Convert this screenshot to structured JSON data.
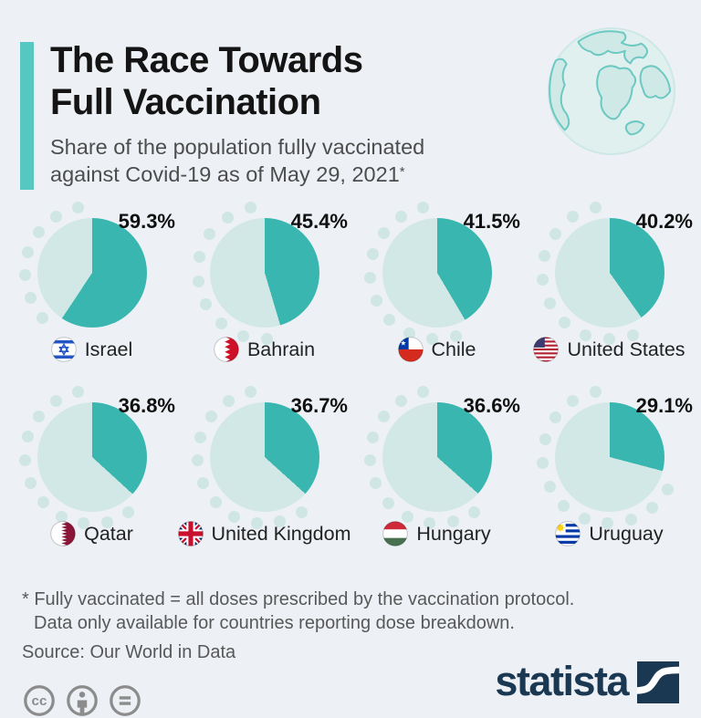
{
  "header": {
    "title_line1": "The Race Towards",
    "title_line2": "Full Vaccination",
    "subtitle_line1": "Share of the population fully vaccinated",
    "subtitle_line2": "against Covid-19 as of May 29, 2021",
    "footnote_marker": "*"
  },
  "chart_data": {
    "type": "pie",
    "layout": "small-multiples 2 rows x 4 columns, decorative dot ring along remainder arc",
    "title": "The Race Towards Full Vaccination",
    "subtitle": "Share of the population fully vaccinated against Covid-19 as of May 29, 2021*",
    "value_unit": "percent of population fully vaccinated",
    "series": [
      {
        "country": "Israel",
        "value": 59.3,
        "label": "59.3%",
        "flag_icon": "israel-flag-icon",
        "flag_id": "il"
      },
      {
        "country": "Bahrain",
        "value": 45.4,
        "label": "45.4%",
        "flag_icon": "bahrain-flag-icon",
        "flag_id": "bh"
      },
      {
        "country": "Chile",
        "value": 41.5,
        "label": "41.5%",
        "flag_icon": "chile-flag-icon",
        "flag_id": "cl"
      },
      {
        "country": "United States",
        "value": 40.2,
        "label": "40.2%",
        "flag_icon": "united-states-flag-icon",
        "flag_id": "us"
      },
      {
        "country": "Qatar",
        "value": 36.8,
        "label": "36.8%",
        "flag_icon": "qatar-flag-icon",
        "flag_id": "qa"
      },
      {
        "country": "United Kingdom",
        "value": 36.7,
        "label": "36.7%",
        "flag_icon": "united-kingdom-flag-icon",
        "flag_id": "gb"
      },
      {
        "country": "Hungary",
        "value": 36.6,
        "label": "36.6%",
        "flag_icon": "hungary-flag-icon",
        "flag_id": "hu"
      },
      {
        "country": "Uruguay",
        "value": 29.1,
        "label": "29.1%",
        "flag_icon": "uruguay-flag-icon",
        "flag_id": "uy"
      }
    ],
    "colors": {
      "vaccinated_slice": "#38b6af",
      "remainder_slice": "#d2e8e6",
      "dot_ring": "#cfe6e4",
      "accent_bar": "#56c7c1",
      "background": "#edf1f6",
      "brand_navy": "#1b3853"
    }
  },
  "footer": {
    "footnote_line1": "* Fully vaccinated = all doses prescribed by the vaccination protocol.",
    "footnote_line2": "Data only available for countries reporting dose breakdown.",
    "source": "Source: Our World in Data",
    "license_icons": [
      "cc-icon",
      "attribution-icon",
      "no-derivatives-icon"
    ],
    "brand": "statista"
  }
}
